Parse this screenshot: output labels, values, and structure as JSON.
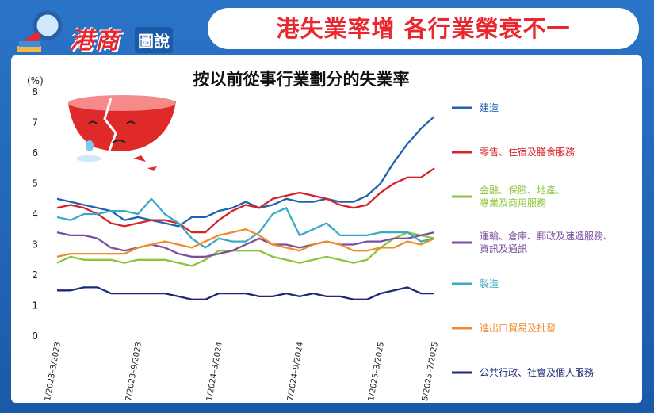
{
  "header": {
    "logo_text": "港商",
    "logo_sub": "圖說",
    "headline": "港失業率增 各行業榮衰不一"
  },
  "chart_data": {
    "type": "line",
    "title": "按以前從事行業劃分的失業率",
    "ylabel": "(%)",
    "ylim": [
      0,
      8
    ],
    "yticks": [
      0,
      1,
      2,
      3,
      4,
      5,
      6,
      7,
      8
    ],
    "x_tick_labels": [
      {
        "i": 0,
        "label": "1/2023–3/2023"
      },
      {
        "i": 6,
        "label": "7/2023–9/2023"
      },
      {
        "i": 12,
        "label": "1/2024–3/2024"
      },
      {
        "i": 18,
        "label": "7/2024–9/2024"
      },
      {
        "i": 24,
        "label": "1/2025–3/2025"
      },
      {
        "i": 28,
        "label": "5/2025–7/2025"
      }
    ],
    "n_points": 29,
    "series": [
      {
        "name": "建造",
        "color": "#1f63b0",
        "values": [
          4.5,
          4.4,
          4.3,
          4.2,
          4.1,
          3.8,
          3.9,
          3.8,
          3.7,
          3.6,
          3.9,
          3.9,
          4.1,
          4.2,
          4.4,
          4.2,
          4.3,
          4.5,
          4.4,
          4.4,
          4.5,
          4.4,
          4.4,
          4.6,
          5.0,
          5.7,
          6.3,
          6.8,
          7.2
        ]
      },
      {
        "name": "零售、住宿及膳食服務",
        "color": "#d6232a",
        "values": [
          4.2,
          4.3,
          4.2,
          4.0,
          3.7,
          3.6,
          3.7,
          3.8,
          3.8,
          3.7,
          3.4,
          3.4,
          3.8,
          4.1,
          4.3,
          4.2,
          4.5,
          4.6,
          4.7,
          4.6,
          4.5,
          4.3,
          4.2,
          4.3,
          4.7,
          5.0,
          5.2,
          5.2,
          5.5
        ]
      },
      {
        "name": "金融、保險、地產、專業及商用服務",
        "color": "#8cc43c",
        "values": [
          2.4,
          2.6,
          2.5,
          2.5,
          2.5,
          2.4,
          2.5,
          2.5,
          2.5,
          2.4,
          2.3,
          2.5,
          2.8,
          2.8,
          2.8,
          2.8,
          2.6,
          2.5,
          2.4,
          2.5,
          2.6,
          2.5,
          2.4,
          2.5,
          2.9,
          3.2,
          3.4,
          3.3,
          3.2
        ]
      },
      {
        "name": "運輸、倉庫、郵政及速遞服務、資訊及通訊",
        "color": "#7b4f9e",
        "values": [
          3.4,
          3.3,
          3.3,
          3.2,
          2.9,
          2.8,
          2.9,
          3.0,
          2.9,
          2.7,
          2.6,
          2.6,
          2.7,
          2.8,
          3.0,
          3.2,
          3.0,
          3.0,
          2.9,
          3.0,
          3.1,
          3.0,
          3.0,
          3.1,
          3.1,
          3.2,
          3.2,
          3.3,
          3.4
        ]
      },
      {
        "name": "製造",
        "color": "#3aaac2",
        "values": [
          3.9,
          3.8,
          4.0,
          4.0,
          4.1,
          4.1,
          4.0,
          4.5,
          4.0,
          3.7,
          3.2,
          2.9,
          3.2,
          3.1,
          3.1,
          3.4,
          4.0,
          4.2,
          3.3,
          3.5,
          3.7,
          3.3,
          3.3,
          3.3,
          3.4,
          3.4,
          3.4,
          3.1,
          3.2
        ]
      },
      {
        "name": "進出口貿易及批發",
        "color": "#f08c28",
        "values": [
          2.6,
          2.7,
          2.7,
          2.7,
          2.7,
          2.7,
          2.9,
          3.0,
          3.1,
          3.0,
          2.9,
          3.1,
          3.3,
          3.4,
          3.5,
          3.3,
          3.0,
          2.9,
          2.8,
          3.0,
          3.1,
          3.0,
          2.8,
          2.8,
          2.9,
          2.9,
          3.1,
          3.0,
          3.2
        ]
      },
      {
        "name": "公共行政、社會及個人服務",
        "color": "#1e2a78",
        "values": [
          1.5,
          1.5,
          1.6,
          1.6,
          1.4,
          1.4,
          1.4,
          1.4,
          1.4,
          1.3,
          1.2,
          1.2,
          1.4,
          1.4,
          1.4,
          1.3,
          1.3,
          1.4,
          1.3,
          1.4,
          1.3,
          1.3,
          1.2,
          1.2,
          1.4,
          1.5,
          1.6,
          1.4,
          1.4
        ]
      }
    ]
  }
}
